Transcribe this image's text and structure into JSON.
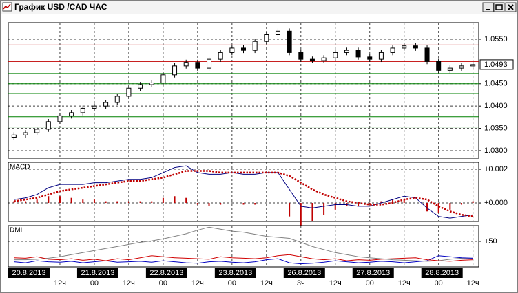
{
  "window_title": "График USD /CAD  ЧАС",
  "chart_data": [
    {
      "type": "candlestick",
      "x_labels": [
        null,
        null,
        null,
        null,
        "12ч",
        null,
        null,
        "00",
        null,
        null,
        "12ч",
        null,
        null,
        "00",
        null,
        null,
        "12ч",
        null,
        null,
        "00",
        null,
        null,
        "12ч",
        null,
        null,
        "3ч",
        null,
        null,
        "12ч",
        null,
        null,
        "00",
        null,
        null,
        "12ч",
        null,
        null,
        "00",
        null,
        null,
        "12ч"
      ],
      "date_labels": [
        null,
        "20.8.2013",
        null,
        null,
        null,
        null,
        null,
        "21.8.2013",
        null,
        null,
        null,
        null,
        null,
        "22.8.2013",
        null,
        null,
        null,
        null,
        null,
        "23.8.2013",
        null,
        null,
        null,
        null,
        null,
        "26.8.2013",
        null,
        null,
        null,
        null,
        null,
        "27.8.2013",
        null,
        null,
        null,
        null,
        null,
        "28.8.2013",
        null,
        null,
        null
      ],
      "open": [
        1.033,
        1.0335,
        1.034,
        1.0348,
        1.0365,
        1.0378,
        1.0385,
        1.0395,
        1.04,
        1.0408,
        1.0422,
        1.044,
        1.0448,
        1.0452,
        1.047,
        1.049,
        1.0498,
        1.0485,
        1.0505,
        1.052,
        1.053,
        1.0525,
        1.0545,
        1.056,
        1.0568,
        1.052,
        1.0505,
        1.0502,
        1.0508,
        1.052,
        1.0525,
        1.051,
        1.0505,
        1.052,
        1.053,
        1.0535,
        1.053,
        1.05,
        1.048,
        1.0485,
        1.049
      ],
      "high": [
        1.0341,
        1.0346,
        1.0354,
        1.0371,
        1.0384,
        1.0391,
        1.0401,
        1.0406,
        1.0414,
        1.0428,
        1.0446,
        1.0454,
        1.0458,
        1.0476,
        1.0496,
        1.0504,
        1.0504,
        1.0511,
        1.0526,
        1.0536,
        1.0536,
        1.0551,
        1.0566,
        1.0574,
        1.0574,
        1.0526,
        1.0511,
        1.0514,
        1.0526,
        1.0531,
        1.0531,
        1.0516,
        1.0526,
        1.0536,
        1.0541,
        1.0541,
        1.0536,
        1.0506,
        1.0491,
        1.0496,
        1.0499
      ],
      "low": [
        1.0324,
        1.0329,
        1.0334,
        1.0342,
        1.0359,
        1.0372,
        1.0379,
        1.0389,
        1.0394,
        1.0402,
        1.0416,
        1.0434,
        1.0442,
        1.0446,
        1.0464,
        1.0484,
        1.0479,
        1.0479,
        1.0499,
        1.0514,
        1.0519,
        1.0519,
        1.0539,
        1.0554,
        1.0514,
        1.0499,
        1.0496,
        1.0496,
        1.0502,
        1.0514,
        1.0504,
        1.0499,
        1.0499,
        1.0514,
        1.0524,
        1.0524,
        1.0494,
        1.0474,
        1.0474,
        1.0479,
        1.0484
      ],
      "close": [
        1.0335,
        1.034,
        1.0348,
        1.0365,
        1.0378,
        1.0385,
        1.0395,
        1.04,
        1.0408,
        1.0422,
        1.044,
        1.0448,
        1.0452,
        1.047,
        1.049,
        1.0498,
        1.0485,
        1.0505,
        1.052,
        1.053,
        1.0525,
        1.0545,
        1.056,
        1.0568,
        1.052,
        1.0505,
        1.0502,
        1.0508,
        1.052,
        1.0525,
        1.051,
        1.0505,
        1.052,
        1.053,
        1.0535,
        1.053,
        1.05,
        1.048,
        1.0485,
        1.049,
        1.0493
      ],
      "color": "#000000",
      "ylim": [
        1.0283,
        1.0587
      ],
      "yticks": [
        {
          "value": 1.055,
          "label": "1.0550"
        },
        {
          "value": 1.045,
          "label": "1.0450"
        },
        {
          "value": 1.04,
          "label": "1.0400"
        },
        {
          "value": 1.035,
          "label": "1.0350"
        },
        {
          "value": 1.03,
          "label": "1.0300"
        }
      ],
      "grid": true,
      "levels": [
        {
          "value": 1.0537,
          "color": "#c00000"
        },
        {
          "value": 1.05,
          "color": "#c00000"
        },
        {
          "value": 1.0473,
          "color": "#008000"
        },
        {
          "value": 1.045,
          "color": "#008000"
        },
        {
          "value": 1.0428,
          "color": "#008000"
        },
        {
          "value": 1.0376,
          "color": "#008000"
        },
        {
          "value": 1.0353,
          "color": "#008000"
        }
      ],
      "last_price": {
        "value": 1.0493,
        "label": "1.0493"
      }
    },
    {
      "type": "macd",
      "title": "MACD",
      "series": [
        {
          "color": "#000080",
          "style": "solid",
          "values": [
            0.0002,
            0.0003,
            0.0005,
            0.0009,
            0.0011,
            0.0011,
            0.0011,
            0.0012,
            0.0012,
            0.0013,
            0.0014,
            0.0014,
            0.0015,
            0.0018,
            0.0021,
            0.0022,
            0.0018,
            0.0017,
            0.0017,
            0.0018,
            0.0017,
            0.0017,
            0.0018,
            0.0018,
            0.0008,
            -0.0002,
            -0.0003,
            -0.0002,
            -0.0001,
            -0.0001,
            -0.0002,
            -0.0002,
            0,
            0.0002,
            0.0004,
            0.0003,
            -0.0003,
            -0.0008,
            -0.0009,
            -0.0008,
            -0.0007
          ]
        },
        {
          "color": "#c00000",
          "style": "dotted",
          "values": [
            0.0001,
            0.0002,
            0.0003,
            0.0005,
            0.0007,
            0.0008,
            0.0009,
            0.001,
            0.0011,
            0.0012,
            0.0013,
            0.0013,
            0.0014,
            0.0015,
            0.0017,
            0.0019,
            0.0019,
            0.0019,
            0.0018,
            0.0018,
            0.0018,
            0.0018,
            0.0018,
            0.0018,
            0.0016,
            0.0012,
            0.0008,
            0.0005,
            0.0003,
            0.0001,
            0,
            -0.0001,
            -0.0001,
            0,
            0.0002,
            0.0003,
            0.0002,
            -0.0002,
            -0.0005,
            -0.0007,
            -0.0008
          ]
        }
      ],
      "histogram": {
        "color": "#c00000",
        "values": [
          0.0001,
          0.0001,
          0.0002,
          0.0004,
          0.0004,
          0.0003,
          0.0002,
          0.0002,
          0.0001,
          0.0001,
          0.0001,
          0.0001,
          0.0001,
          0.0003,
          0.0004,
          0.0003,
          -0.0001,
          -0.0002,
          -0.0001,
          0,
          -0.0001,
          -0.0001,
          0,
          0,
          -0.0008,
          -0.0014,
          -0.0011,
          -0.0007,
          -0.0004,
          -0.0002,
          -0.0002,
          -0.0001,
          0.0001,
          0.0002,
          0.0002,
          0,
          -0.0005,
          -0.0006,
          -0.0004,
          -0.0001,
          0.0001
        ]
      },
      "ylim": [
        -0.0011,
        0.00241
      ],
      "yticks": [
        {
          "value": 0.002,
          "label": "+0.002"
        },
        {
          "value": 0,
          "label": "+0.000"
        }
      ],
      "grid": true
    },
    {
      "type": "dmi",
      "title": "DMI",
      "series": [
        {
          "color": "#808080",
          "style": "solid",
          "values": [
            14,
            14,
            15,
            17,
            20,
            24,
            28,
            32,
            36,
            40,
            44,
            48,
            51,
            55,
            60,
            65,
            72,
            78,
            74,
            70,
            68,
            64,
            60,
            58,
            56,
            48,
            40,
            34,
            28,
            24,
            20,
            18,
            16,
            14,
            13,
            12,
            11,
            12,
            15,
            17,
            17
          ]
        },
        {
          "color": "#0000c0",
          "style": "solid",
          "values": [
            10,
            8,
            12,
            10,
            9,
            11,
            8,
            10,
            12,
            9,
            10,
            11,
            9,
            12,
            10,
            8,
            7,
            10,
            11,
            9,
            8,
            10,
            14,
            16,
            8,
            6,
            7,
            9,
            12,
            10,
            8,
            9,
            11,
            10,
            8,
            10,
            12,
            22,
            20,
            18,
            17
          ]
        },
        {
          "color": "#d00000",
          "style": "solid",
          "values": [
            18,
            17,
            20,
            15,
            14,
            16,
            13,
            15,
            12,
            16,
            14,
            18,
            22,
            20,
            18,
            17,
            16,
            15,
            20,
            18,
            17,
            16,
            18,
            22,
            24,
            20,
            16,
            14,
            16,
            12,
            14,
            13,
            15,
            16,
            17,
            18,
            14,
            12,
            11,
            13,
            14
          ]
        }
      ],
      "ylim": [
        0,
        81
      ],
      "yticks": [
        {
          "value": 50,
          "label": "+50"
        }
      ],
      "grid": true
    }
  ]
}
